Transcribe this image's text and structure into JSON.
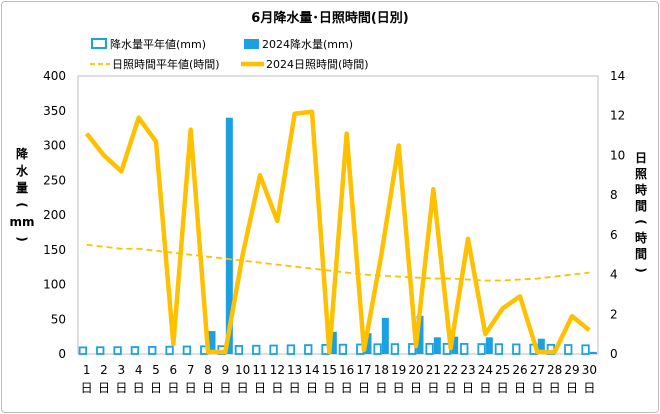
{
  "chart_data": {
    "type": "bar+line",
    "title": "6月降水量･日照時間(日別)",
    "legend": [
      {
        "label": "降水量平年値(mm)",
        "kind": "bar-outline",
        "color": "#1ba1e2"
      },
      {
        "label": "2024降水量(mm)",
        "kind": "bar-filled",
        "color": "#1ba1e2"
      },
      {
        "label": "日照時間平年値(時間)",
        "kind": "dashed-line",
        "color": "#ffc000"
      },
      {
        "label": "2024日照時間(時間)",
        "kind": "line",
        "color": "#ffc000"
      }
    ],
    "categories": [
      "1",
      "2",
      "3",
      "4",
      "5",
      "6",
      "7",
      "8",
      "9",
      "10",
      "11",
      "12",
      "13",
      "14",
      "15",
      "16",
      "17",
      "18",
      "19",
      "20",
      "21",
      "22",
      "23",
      "24",
      "25",
      "26",
      "27",
      "28",
      "29",
      "30"
    ],
    "category_suffix": "日",
    "left_axis": {
      "label_chars": [
        "降",
        "水",
        "量",
        "(",
        "mm",
        ")"
      ],
      "ylim": [
        0,
        400
      ],
      "ticks": [
        0,
        50,
        100,
        150,
        200,
        250,
        300,
        350,
        400
      ]
    },
    "right_axis": {
      "label_chars": [
        "日",
        "照",
        "時",
        "間",
        "(",
        "時",
        "間",
        ")"
      ],
      "ylim": [
        0,
        14
      ],
      "ticks": [
        0,
        2,
        4,
        6,
        8,
        10,
        12,
        14
      ]
    },
    "series": [
      {
        "name": "降水量平年値(mm)",
        "axis": "left",
        "values": [
          9.5,
          9.7,
          9.8,
          10,
          10.2,
          10.5,
          10.8,
          11,
          11.3,
          11.6,
          11.9,
          12.2,
          12.5,
          12.8,
          13.1,
          13.4,
          13.7,
          14,
          14.2,
          14.4,
          14.6,
          14.6,
          14.5,
          14.3,
          14.1,
          13.8,
          13.5,
          13.2,
          12.9,
          12.5
        ]
      },
      {
        "name": "2024降水量(mm)",
        "axis": "left",
        "values": [
          0,
          0,
          0,
          0,
          0,
          0,
          0,
          33,
          340,
          0,
          0,
          0,
          0,
          0,
          32,
          0,
          30,
          52,
          0,
          55,
          24,
          25,
          0,
          24,
          0,
          0,
          22,
          0,
          0,
          3
        ]
      },
      {
        "name": "日照時間平年値(時間)",
        "axis": "right",
        "values": [
          5.5,
          5.4,
          5.3,
          5.3,
          5.2,
          5.1,
          5.0,
          4.9,
          4.8,
          4.7,
          4.6,
          4.5,
          4.4,
          4.3,
          4.2,
          4.1,
          4.0,
          3.95,
          3.9,
          3.85,
          3.8,
          3.8,
          3.75,
          3.7,
          3.7,
          3.75,
          3.8,
          3.9,
          4.0,
          4.1
        ]
      },
      {
        "name": "2024日照時間(時間)",
        "axis": "right",
        "values": [
          11.1,
          10.0,
          9.2,
          11.9,
          10.7,
          0.5,
          11.3,
          0.1,
          0.1,
          5.0,
          9.0,
          6.7,
          12.1,
          12.2,
          0.1,
          11.1,
          0.2,
          5.0,
          10.5,
          0.4,
          8.3,
          0.3,
          5.8,
          1.0,
          2.3,
          2.9,
          0.1,
          0.1,
          1.9,
          1.2
        ]
      }
    ]
  }
}
